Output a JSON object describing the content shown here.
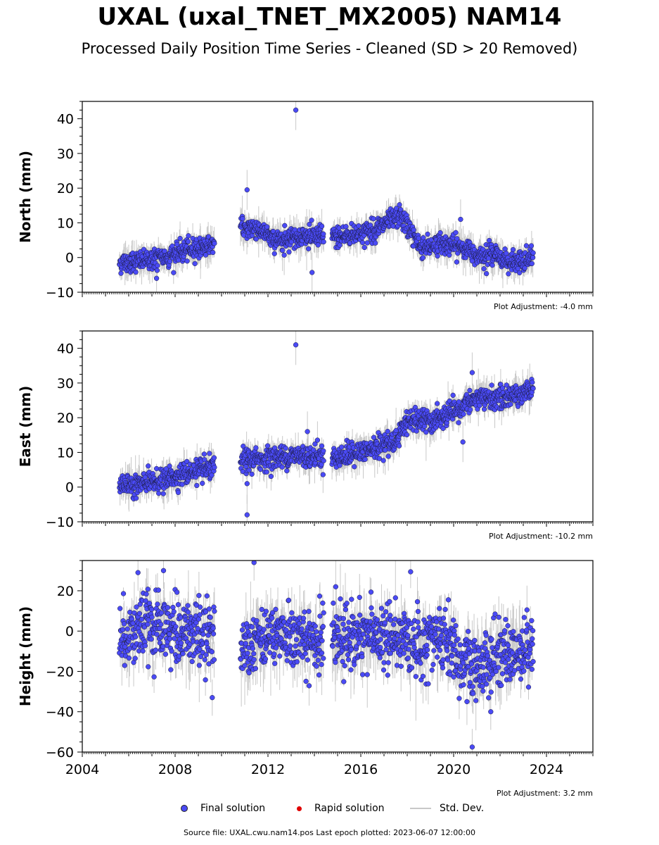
{
  "title": "UXAL (uxal_TNET_MX2005) NAM14",
  "subtitle": "Processed Daily Position Time Series - Cleaned (SD > 20 Removed)",
  "legend": {
    "final": "Final solution",
    "rapid": "Rapid solution",
    "stddev": "Std. Dev."
  },
  "source": "Source file: UXAL.cwu.nam14.pos  Last epoch plotted: 2023-06-07 12:00:00",
  "colors": {
    "final": "#4a4af5",
    "rapid": "#e00000",
    "stddev": "#c8c8c8"
  },
  "chart_data": [
    {
      "type": "scatter",
      "ylabel": "North (mm)",
      "adjustment": "Plot Adjustment: -4.0 mm",
      "xlim": [
        2004,
        2026
      ],
      "ylim": [
        -10,
        45
      ],
      "yticks": [
        -10,
        0,
        10,
        20,
        30,
        40
      ],
      "xticks": [
        2004,
        2008,
        2012,
        2016,
        2020,
        2024
      ],
      "show_xtick_labels": false,
      "trend": [
        [
          2005.6,
          -1.5
        ],
        [
          2006.5,
          -1
        ],
        [
          2007.5,
          0
        ],
        [
          2008.5,
          2
        ],
        [
          2009.7,
          4
        ],
        [
          2010.8,
          8.5
        ],
        [
          2011.5,
          8.5
        ],
        [
          2012.3,
          5
        ],
        [
          2013.0,
          6
        ],
        [
          2014.4,
          6
        ],
        [
          2015.0,
          6
        ],
        [
          2016.0,
          7
        ],
        [
          2016.6,
          8
        ],
        [
          2017.7,
          12
        ],
        [
          2018.6,
          3
        ],
        [
          2019.5,
          4
        ],
        [
          2020.3,
          3
        ],
        [
          2021.0,
          1
        ],
        [
          2021.8,
          1
        ],
        [
          2022.6,
          -2
        ],
        [
          2023.4,
          0
        ]
      ],
      "scatter": 1.5,
      "outliers": [
        [
          2013.2,
          42.5
        ],
        [
          2011.1,
          19.5
        ],
        [
          2013.9,
          -4.3
        ],
        [
          2007.2,
          -6
        ],
        [
          2012.7,
          0.7
        ],
        [
          2020.3,
          11
        ]
      ]
    },
    {
      "type": "scatter",
      "ylabel": "East (mm)",
      "adjustment": "Plot Adjustment: -10.2 mm",
      "xlim": [
        2004,
        2026
      ],
      "ylim": [
        -10,
        45
      ],
      "yticks": [
        -10,
        0,
        10,
        20,
        30,
        40
      ],
      "xticks": [
        2004,
        2008,
        2012,
        2016,
        2020,
        2024
      ],
      "show_xtick_labels": false,
      "trend": [
        [
          2005.6,
          0.5
        ],
        [
          2006.5,
          1
        ],
        [
          2007.5,
          2
        ],
        [
          2008.5,
          4
        ],
        [
          2009.7,
          5.5
        ],
        [
          2010.8,
          7.5
        ],
        [
          2011.5,
          8
        ],
        [
          2012.3,
          8.5
        ],
        [
          2013.0,
          9
        ],
        [
          2014.4,
          9
        ],
        [
          2015.0,
          8.5
        ],
        [
          2016.0,
          10
        ],
        [
          2016.6,
          11
        ],
        [
          2017.6,
          14
        ],
        [
          2017.9,
          19
        ],
        [
          2019.0,
          19
        ],
        [
          2019.5,
          20
        ],
        [
          2020.3,
          22
        ],
        [
          2020.6,
          25
        ],
        [
          2021.5,
          25.5
        ],
        [
          2022.5,
          26
        ],
        [
          2023.4,
          28.5
        ]
      ],
      "scatter": 1.6,
      "outliers": [
        [
          2013.2,
          41
        ],
        [
          2011.1,
          -8
        ],
        [
          2011.1,
          1
        ],
        [
          2020.8,
          33
        ],
        [
          2013.7,
          16
        ],
        [
          2020.4,
          13
        ]
      ]
    },
    {
      "type": "scatter",
      "ylabel": "Height (mm)",
      "adjustment": "Plot Adjustment: 3.2 mm",
      "xlim": [
        2004,
        2026
      ],
      "ylim": [
        -60,
        35
      ],
      "yticks": [
        -60,
        -40,
        -20,
        0,
        20
      ],
      "xticks": [
        2004,
        2008,
        2012,
        2016,
        2020,
        2024
      ],
      "show_xtick_labels": true,
      "trend": [
        [
          2005.6,
          -3
        ],
        [
          2006.5,
          2
        ],
        [
          2007.5,
          0
        ],
        [
          2008.5,
          0
        ],
        [
          2009.7,
          -2
        ],
        [
          2010.8,
          -8
        ],
        [
          2011.5,
          -2
        ],
        [
          2012.3,
          -2
        ],
        [
          2013.0,
          -3
        ],
        [
          2014.4,
          -7
        ],
        [
          2015.0,
          -3
        ],
        [
          2016.0,
          -2
        ],
        [
          2017.0,
          -3
        ],
        [
          2018.0,
          -5
        ],
        [
          2019.0,
          -4
        ],
        [
          2019.8,
          -5
        ],
        [
          2020.2,
          -15
        ],
        [
          2020.8,
          -20
        ],
        [
          2021.5,
          -15
        ],
        [
          2022.0,
          -10
        ],
        [
          2022.6,
          -12
        ],
        [
          2023.4,
          -6
        ]
      ],
      "scatter": 8,
      "outliers": [
        [
          2011.4,
          34
        ],
        [
          2009.6,
          -33
        ],
        [
          2020.8,
          -57.5
        ],
        [
          2006.4,
          29
        ],
        [
          2007.5,
          30
        ],
        [
          2021.6,
          -40
        ]
      ]
    }
  ]
}
